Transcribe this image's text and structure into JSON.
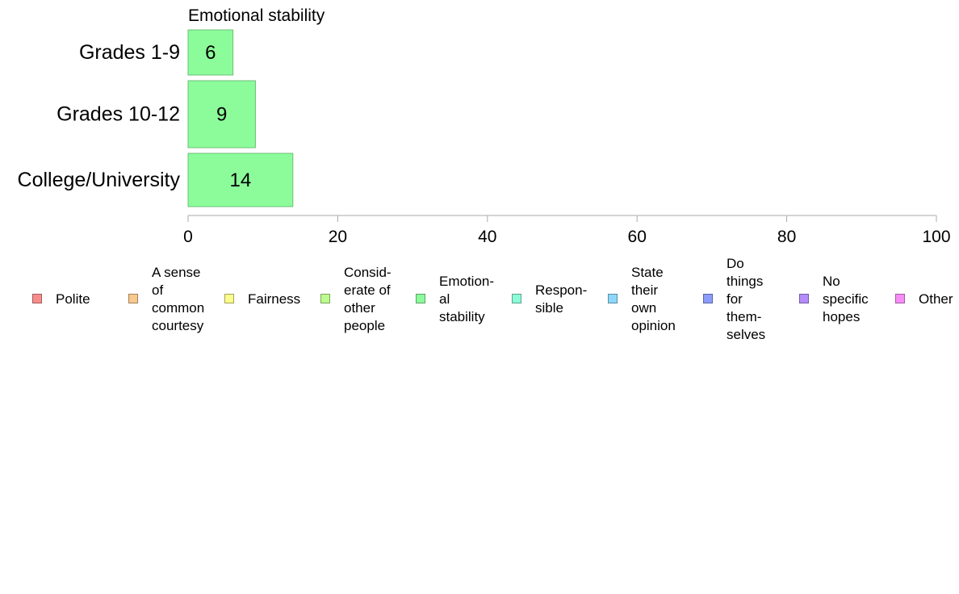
{
  "chart_data": {
    "type": "bar",
    "orientation": "horizontal",
    "title": "Emotional stability",
    "categories": [
      "Grades 1-9",
      "Grades 10-12",
      "College/University"
    ],
    "series": [
      {
        "name": "Emotional stability",
        "values": [
          6,
          9,
          14
        ],
        "color": "#8cfc9a"
      }
    ],
    "xlim": [
      0,
      100
    ],
    "x_ticks": [
      "0",
      "20",
      "40",
      "60",
      "80",
      "100"
    ],
    "grid": false,
    "legend_position": "bottom",
    "legend": [
      {
        "label": "Polite",
        "color": "#f88c8c"
      },
      {
        "label": "A sense\nof\ncommon\ncourtesy",
        "color": "#f8c88c"
      },
      {
        "label": "Fairness",
        "color": "#fcfc8c"
      },
      {
        "label": "Consid-\nerate of\nother\npeople",
        "color": "#bcfc8c"
      },
      {
        "label": "Emotion-\nal\nstability",
        "color": "#8cfc9a"
      },
      {
        "label": "Respon-\nsible",
        "color": "#8cfcd8"
      },
      {
        "label": "State\ntheir\nown\nopinion",
        "color": "#8cd8fc"
      },
      {
        "label": "Do\nthings\nfor\nthem-\nselves",
        "color": "#8c9cfc"
      },
      {
        "label": "No\nspecific\nhopes",
        "color": "#b48cfc"
      },
      {
        "label": "Other",
        "color": "#f88cf8"
      }
    ]
  }
}
